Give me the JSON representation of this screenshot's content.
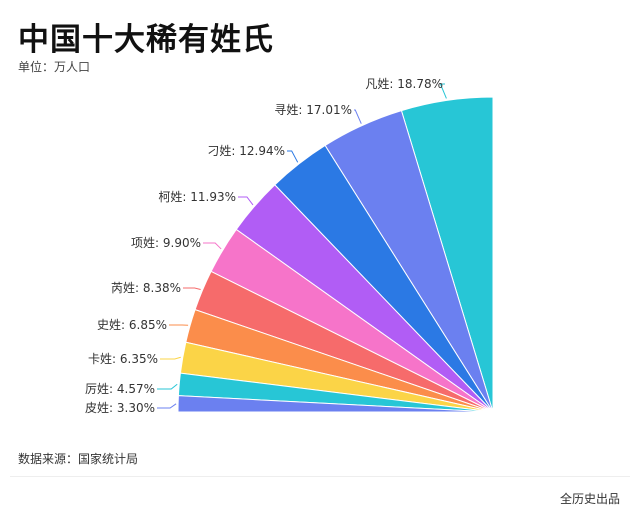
{
  "chart_data": {
    "type": "pie",
    "variant": "quarter-circle",
    "title": "中国十大稀有姓氏",
    "subtitle": "单位：万人口",
    "categories": [
      "凡姓",
      "寻姓",
      "刁姓",
      "柯姓",
      "项姓",
      "芮姓",
      "史姓",
      "卡姓",
      "厉姓",
      "皮姓"
    ],
    "values": [
      18.78,
      17.01,
      12.94,
      11.93,
      9.9,
      8.38,
      6.85,
      6.35,
      4.57,
      3.3
    ],
    "labels": [
      "凡姓: 18.78%",
      "寻姓: 17.01%",
      "刁姓: 12.94%",
      "柯姓: 11.93%",
      "项姓: 9.90%",
      "芮姓: 8.38%",
      "史姓: 6.85%",
      "卡姓: 6.35%",
      "厉姓: 4.57%",
      "皮姓: 3.30%"
    ],
    "colors": [
      "#27c6d6",
      "#6b80f0",
      "#2b79e4",
      "#b15df5",
      "#f674c9",
      "#f66b6b",
      "#fb8d4b",
      "#fbd447",
      "#27c6d6",
      "#6b80f0"
    ],
    "legend": "none"
  },
  "footer": {
    "source": "数据来源：国家统计局",
    "credit": "全历史出品"
  }
}
